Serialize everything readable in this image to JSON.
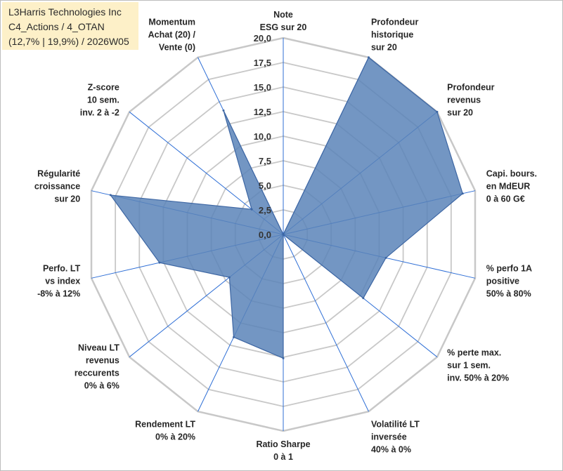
{
  "header": {
    "title_lines": [
      "L3Harris Technologies Inc",
      "C4_Actions / 4_OTAN",
      "(12,7% | 19,9%) / 2026W05"
    ]
  },
  "colors": {
    "fill": "#5b84b8",
    "stroke": "#3d66a3",
    "grid": "#c8c8c8",
    "spoke": "#2f6fd6",
    "title_bg": "#fdf0c8"
  },
  "chart_data": {
    "type": "radar",
    "title": "L3Harris Technologies Inc",
    "rmin": 0,
    "rmax": 20,
    "tick_step": 2.5,
    "tick_labels": [
      "0,0",
      "2,5",
      "5,0",
      "7,5",
      "10,0",
      "12,5",
      "15,0",
      "17,5",
      "20,0"
    ],
    "axes": [
      {
        "label": [
          "Note",
          "ESG sur 20"
        ],
        "value": 0
      },
      {
        "label": [
          "Profondeur",
          "historique",
          "sur 20"
        ],
        "value": 20
      },
      {
        "label": [
          "Profondeur",
          "revenus",
          "sur 20"
        ],
        "value": 20
      },
      {
        "label": [
          "Capi. bours.",
          "en MdEUR",
          "0 à 60 G€"
        ],
        "value": 18.7
      },
      {
        "label": [
          "% perfo 1A",
          "positive",
          "50% à 80%"
        ],
        "value": 10.7
      },
      {
        "label": [
          "% perte max.",
          "sur 1 sem.",
          "inv. 50% à 20%"
        ],
        "value": 10.4
      },
      {
        "label": [
          "Volatilité LT",
          "inversée",
          "40% à 0%"
        ],
        "value": 0
      },
      {
        "label": [
          "Ratio Sharpe",
          "0 à 1"
        ],
        "value": 12.6
      },
      {
        "label": [
          "Rendement LT",
          "0% à 20%"
        ],
        "value": 11.6
      },
      {
        "label": [
          "Niveau LT",
          "revenus",
          "reccurents",
          "0% à 6%"
        ],
        "value": 7.0
      },
      {
        "label": [
          "Perfo. LT",
          "vs index",
          "-8% à 12%"
        ],
        "value": 12.9
      },
      {
        "label": [
          "Régularité",
          "croissance",
          "sur 20"
        ],
        "value": 18.0
      },
      {
        "label": [
          "Z-score",
          "10 sem.",
          "inv. 2 à -2"
        ],
        "value": 4.1
      },
      {
        "label": [
          "Momentum",
          "Achat (20) /",
          "Vente (0)"
        ],
        "value": 14.0
      }
    ],
    "series": [
      {
        "name": "L3Harris Technologies Inc",
        "values": [
          0,
          20,
          20,
          18.7,
          10.7,
          10.4,
          0,
          12.6,
          11.6,
          7.0,
          12.9,
          18.0,
          4.1,
          14.0
        ]
      }
    ]
  }
}
